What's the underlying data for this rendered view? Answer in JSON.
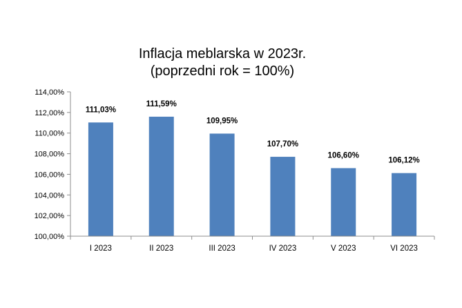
{
  "chart_data": {
    "type": "bar",
    "title": [
      "Inflacja meblarska w 2023r.",
      "(poprzedni rok = 100%)"
    ],
    "categories": [
      "I 2023",
      "II 2023",
      "III 2023",
      "IV 2023",
      "V 2023",
      "VI 2023"
    ],
    "values": [
      111.03,
      111.59,
      109.95,
      107.7,
      106.6,
      106.12
    ],
    "data_labels": [
      "111,03%",
      "111,59%",
      "109,95%",
      "107,70%",
      "106,60%",
      "106,12%"
    ],
    "y_ticks": [
      100,
      102,
      104,
      106,
      108,
      110,
      112,
      114
    ],
    "y_tick_labels": [
      "100,00%",
      "102,00%",
      "104,00%",
      "106,00%",
      "108,00%",
      "110,00%",
      "112,00%",
      "114,00%"
    ],
    "ylim": [
      100,
      114
    ],
    "xlabel": "",
    "ylabel": "",
    "grid": false,
    "legend": "none",
    "bar_color": "#4F81BD"
  }
}
